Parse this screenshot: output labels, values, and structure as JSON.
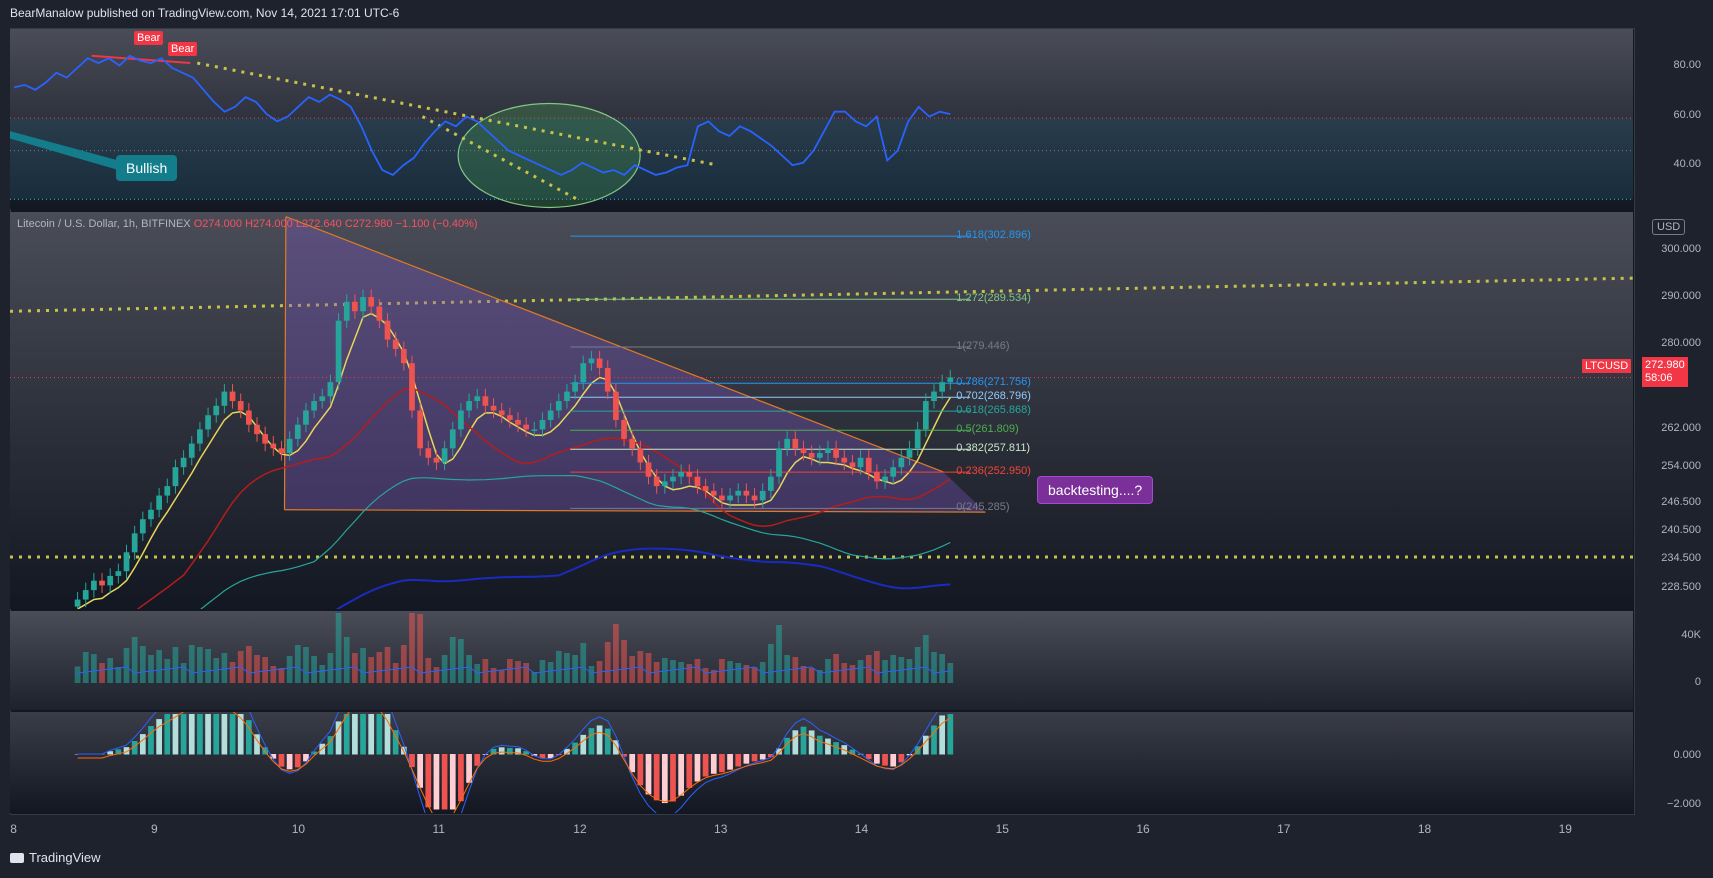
{
  "header": {
    "text": "BearManalow published on TradingView.com, Nov 14, 2021 17:01 UTC-6"
  },
  "footer": {
    "logo_text": "TradingView"
  },
  "rsi_pane": {
    "ticks": [
      "80.00",
      "60.00",
      "40.00"
    ],
    "tick_values": [
      80,
      60,
      40
    ],
    "ylim": [
      26,
      100
    ],
    "levels": [
      70,
      50,
      30
    ],
    "series": [
      76,
      77,
      75,
      78,
      82,
      80,
      84,
      88,
      86,
      88,
      85,
      89,
      87,
      86,
      88,
      84,
      82,
      80,
      75,
      70,
      66,
      68,
      72,
      70,
      65,
      62,
      64,
      68,
      72,
      70,
      73,
      71,
      68,
      60,
      50,
      42,
      40,
      44,
      47,
      53,
      58,
      62,
      60,
      64,
      62,
      58,
      54,
      50,
      48,
      46,
      44,
      42,
      40,
      42,
      45,
      43,
      41,
      42,
      40,
      44,
      42,
      40,
      41,
      43,
      44,
      60,
      62,
      58,
      56,
      60,
      58,
      55,
      52,
      48,
      44,
      45,
      50,
      58,
      66,
      66,
      62,
      60,
      64,
      46,
      50,
      62,
      68,
      64,
      66,
      65
    ],
    "bear_labels": [
      "Bear",
      "Bear"
    ],
    "bullish_label": "Bullish",
    "colors": {
      "line": "#2962ff",
      "trend": "#c9c24a",
      "ellipse": "#4caf50"
    }
  },
  "price_pane": {
    "legend": {
      "symbol": "Litecoin / U.S. Dollar, 1h, BITFINEX",
      "open": "O274.000",
      "high": "H274.000",
      "low": "L272.640",
      "close": "C272.980",
      "change": "−1.100 (−0.40%)"
    },
    "currency_button": "USD",
    "symbol_tag": "LTCUSD",
    "price_tag": "272.980",
    "countdown_tag": "58:06",
    "ticks": [
      "300.000",
      "290.000",
      "280.000",
      "262.000",
      "254.000",
      "246.500",
      "240.500",
      "234.500",
      "228.500"
    ],
    "tick_values": [
      300,
      290,
      280,
      262,
      254,
      246.5,
      240.5,
      234.5,
      228.5
    ],
    "fib_levels": [
      {
        "label": "1.618(302.896)",
        "value": 302.896,
        "color": "#2196f3"
      },
      {
        "label": "1.272(289.534)",
        "value": 289.534,
        "color": "#81c784"
      },
      {
        "label": "1(279.446)",
        "value": 279.446,
        "color": "#787b86"
      },
      {
        "label": "0.786(271.756)",
        "value": 271.756,
        "color": "#2196f3"
      },
      {
        "label": "0.702(268.796)",
        "value": 268.796,
        "color": "#90caf9"
      },
      {
        "label": "0.618(265.868)",
        "value": 265.868,
        "color": "#26a69a"
      },
      {
        "label": "0.5(261.809)",
        "value": 261.809,
        "color": "#4caf50"
      },
      {
        "label": "0.382(257.811)",
        "value": 257.811,
        "color": "#c8e6c9"
      },
      {
        "label": "0.236(252.950)",
        "value": 252.95,
        "color": "#f44336"
      },
      {
        "label": "0(245.285)",
        "value": 245.285,
        "color": "#787b86"
      }
    ],
    "annotation": "backtesting....?",
    "colors": {
      "up": "#26a69a",
      "down": "#ef5350",
      "triangle": "#e07b24",
      "fill": "#7e57c2",
      "ma_yellow": "#e6d65a",
      "ma_red": "#b71c1c",
      "ma_teal": "#26a69a",
      "ma_blue": "#1a2bbf",
      "trend": "#c9c24a"
    }
  },
  "volume_pane": {
    "ticks": [
      "40K",
      "0"
    ],
    "tick_values": [
      40000,
      0
    ]
  },
  "macd_pane": {
    "ticks": [
      "0.000",
      "−2.000"
    ],
    "tick_values": [
      0,
      -2
    ]
  },
  "chart_data": {
    "type": "candlestick",
    "title": "Litecoin / U.S. Dollar, 1h, BITFINEX",
    "x_ticks": [
      "8",
      "9",
      "10",
      "11",
      "12",
      "13",
      "14",
      "15",
      "16",
      "17",
      "18",
      "19"
    ],
    "x_tick_days": [
      8,
      9,
      10,
      11,
      12,
      13,
      14,
      15,
      16,
      17,
      18,
      19
    ],
    "x_range": [
      7.97,
      19.5
    ],
    "ylim": [
      224,
      308
    ],
    "closes": [
      226,
      228,
      230,
      229,
      231,
      232,
      236,
      240,
      243,
      245,
      248,
      250,
      254,
      256,
      259,
      262,
      265,
      267,
      270,
      268,
      266,
      263,
      261,
      259,
      258,
      257,
      260,
      263,
      266,
      268,
      269,
      272,
      285,
      289,
      287,
      290,
      288,
      285,
      281,
      279,
      276,
      266,
      258,
      256,
      255,
      258,
      262,
      266,
      268,
      269,
      267,
      266,
      265,
      264,
      263,
      262,
      262,
      264,
      266,
      268,
      270,
      272,
      276,
      277,
      275,
      270,
      264,
      260,
      258,
      255,
      252,
      250,
      251,
      252,
      253,
      252,
      250,
      249,
      248,
      247,
      248,
      249,
      248,
      247,
      249,
      252,
      258,
      260,
      258,
      257,
      256,
      257,
      258,
      256,
      255,
      254,
      256,
      253,
      251,
      252,
      254,
      256,
      258,
      262,
      268,
      270,
      272,
      273
    ],
    "last_close": 272.98
  }
}
